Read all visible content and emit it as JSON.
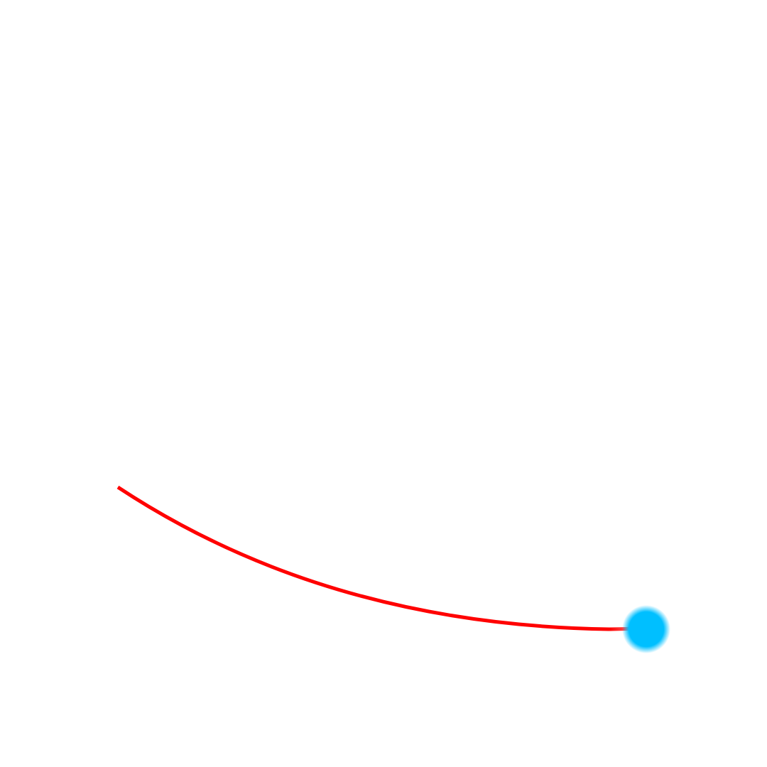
{
  "scene": {
    "background_color": "#ffffff",
    "trajectory": {
      "color": "#ff0000"
    },
    "ball": {
      "color": "#00bfff"
    }
  }
}
